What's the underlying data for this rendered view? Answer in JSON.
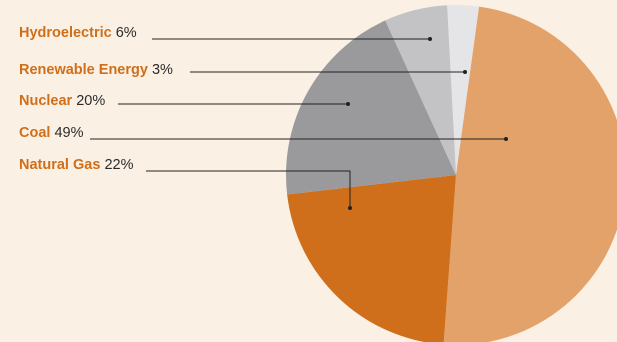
{
  "chart_data": {
    "type": "pie",
    "slices": [
      {
        "label": "Hydroelectric",
        "value": 6,
        "value_label": "6%",
        "color": "#c3c2c4"
      },
      {
        "label": "Renewable Energy",
        "value": 3,
        "value_label": "3%",
        "color": "#e5e5e7"
      },
      {
        "label": "Nuclear",
        "value": 20,
        "value_label": "20%",
        "color": "#9a999c"
      },
      {
        "label": "Coal",
        "value": 49,
        "value_label": "49%",
        "color": "#e2a26a"
      },
      {
        "label": "Natural Gas",
        "value": 22,
        "value_label": "22%",
        "color": "#cf6e1b"
      }
    ]
  },
  "colors": {
    "background": "#faf0e4",
    "label_name": "#d06f1a",
    "label_value": "#2b2b2b",
    "leader_line": "#222222"
  }
}
